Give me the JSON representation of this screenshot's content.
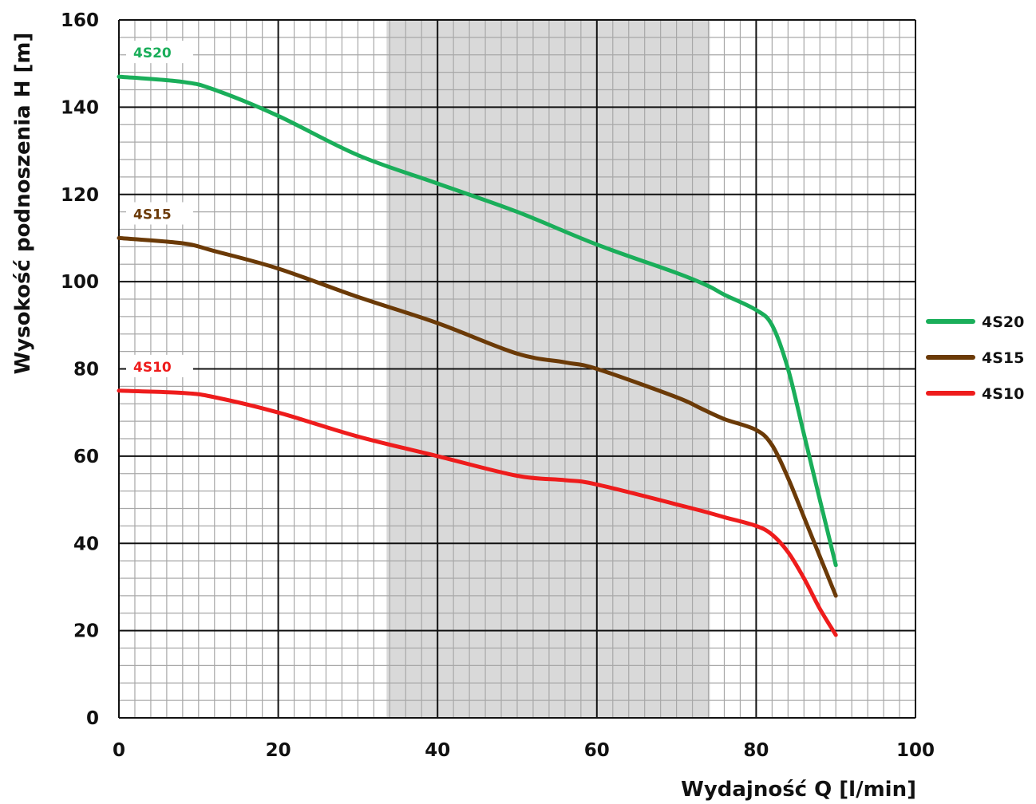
{
  "chart_data": {
    "type": "line",
    "xlabel": "Wydajność Q [l/min]",
    "ylabel": "Wysokość podnoszenia H [m]",
    "xlim": [
      0,
      100
    ],
    "ylim": [
      0,
      160
    ],
    "x_ticks": [
      "0",
      "20",
      "40",
      "60",
      "80",
      "100"
    ],
    "y_ticks": [
      "0",
      "20",
      "40",
      "60",
      "80",
      "100",
      "120",
      "140",
      "160"
    ],
    "major_grid_x": 20,
    "major_grid_y": 20,
    "minor_grid_x": 2,
    "minor_grid_y": 4,
    "grid": true,
    "shaded_band": {
      "x_from": 33.6,
      "x_to": 74.2,
      "color": "#d9d9d9"
    },
    "legend_position": "right",
    "series": [
      {
        "name": "4S20",
        "color": "#1aae5a",
        "points": [
          [
            0,
            147
          ],
          [
            8,
            145.8
          ],
          [
            12,
            144
          ],
          [
            20,
            138
          ],
          [
            30,
            129
          ],
          [
            40,
            122.5
          ],
          [
            50,
            116
          ],
          [
            60,
            108.5
          ],
          [
            70,
            102
          ],
          [
            74,
            99
          ],
          [
            76,
            97
          ],
          [
            80,
            93.5
          ],
          [
            82,
            90
          ],
          [
            84,
            80
          ],
          [
            86,
            65
          ],
          [
            88,
            50
          ],
          [
            90,
            35
          ]
        ]
      },
      {
        "name": "4S15",
        "color": "#6b3a07",
        "points": [
          [
            0,
            110
          ],
          [
            8,
            108.8
          ],
          [
            12,
            107
          ],
          [
            20,
            103
          ],
          [
            30,
            96.5
          ],
          [
            40,
            90.5
          ],
          [
            50,
            83.5
          ],
          [
            56,
            81.5
          ],
          [
            60,
            80
          ],
          [
            70,
            73.5
          ],
          [
            73,
            71
          ],
          [
            76,
            68.5
          ],
          [
            80,
            66
          ],
          [
            82,
            62.5
          ],
          [
            84,
            55
          ],
          [
            86,
            46
          ],
          [
            88,
            37
          ],
          [
            90,
            28
          ]
        ]
      },
      {
        "name": "4S10",
        "color": "#ee1c1c",
        "points": [
          [
            0,
            75
          ],
          [
            8,
            74.5
          ],
          [
            12,
            73.5
          ],
          [
            20,
            70
          ],
          [
            30,
            64.5
          ],
          [
            40,
            60
          ],
          [
            50,
            55.5
          ],
          [
            56,
            54.5
          ],
          [
            60,
            53.5
          ],
          [
            72,
            48
          ],
          [
            76,
            46
          ],
          [
            80,
            44
          ],
          [
            82,
            42
          ],
          [
            84,
            38
          ],
          [
            86,
            32
          ],
          [
            88,
            25
          ],
          [
            90,
            19
          ]
        ]
      }
    ]
  }
}
